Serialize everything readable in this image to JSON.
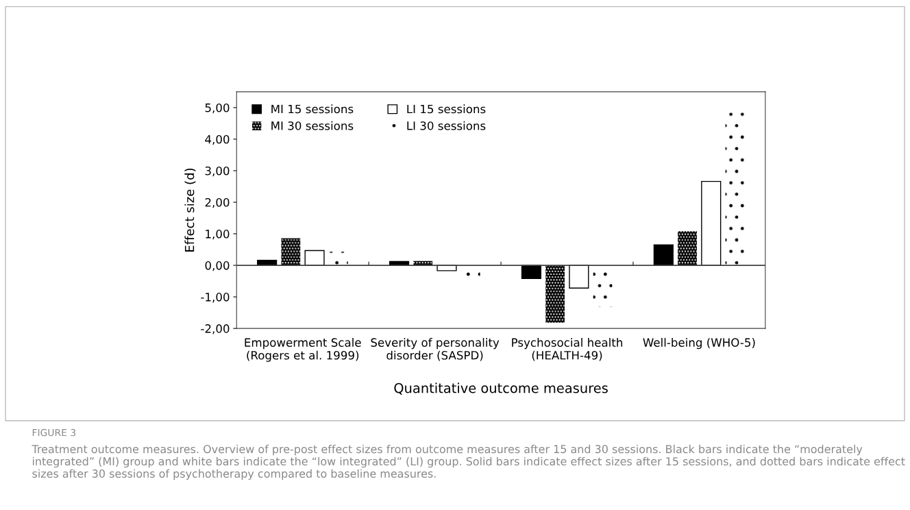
{
  "chart_data": {
    "type": "bar",
    "categories": [
      "Empowerment Scale\n(Rogers et al. 1999)",
      "Severity of personality\ndisorder (SASPD)",
      "Psychosocial health\n(HEALTH-49)",
      "Well-being (WHO-5)"
    ],
    "series": [
      {
        "name": "MI 15 sessions",
        "color": "#000000",
        "values": [
          0.16,
          0.12,
          -0.42,
          0.65
        ]
      },
      {
        "name": "MI 30 sessions",
        "color": "#000000",
        "values": [
          0.86,
          0.14,
          -1.82,
          1.08
        ]
      },
      {
        "name": "LI 15 sessions",
        "color": "#ffffff",
        "values": [
          0.47,
          -0.17,
          -0.72,
          2.66
        ]
      },
      {
        "name": "LI 30 sessions",
        "color": "#ffffff",
        "values": [
          0.43,
          -0.39,
          -1.32,
          4.84
        ]
      }
    ],
    "xlabel": "Quantitative outcome measures",
    "ylabel": "Effect size (d)",
    "ylim": [
      -2,
      5.5
    ],
    "yticks": [
      {
        "value": -2,
        "label": "-2,00"
      },
      {
        "value": -1,
        "label": "-1,00"
      },
      {
        "value": 0,
        "label": "0,00"
      },
      {
        "value": 1,
        "label": "1,00"
      },
      {
        "value": 2,
        "label": "2,00"
      },
      {
        "value": 3,
        "label": "3,00"
      },
      {
        "value": 4,
        "label": "4,00"
      },
      {
        "value": 5,
        "label": "5,00"
      }
    ],
    "ref_lines": [
      {
        "axis": "y",
        "value": 0,
        "color": "#404040"
      }
    ],
    "legend": "top left",
    "grid": false,
    "annotations": [
      "FIGURE 3",
      "Treatment outcome measures. Overview of pre-post effect sizes from outcome measures after 15 and 30 sessions. Black bars indicate the “moderately integrated” (MI) group and white bars indicate the “low integrated” (LI) group. Solid bars indicate effect sizes after 15 sessions, and dotted bars indicate effect sizes after 30 sessions of psychotherapy compared to baseline measures."
    ]
  }
}
